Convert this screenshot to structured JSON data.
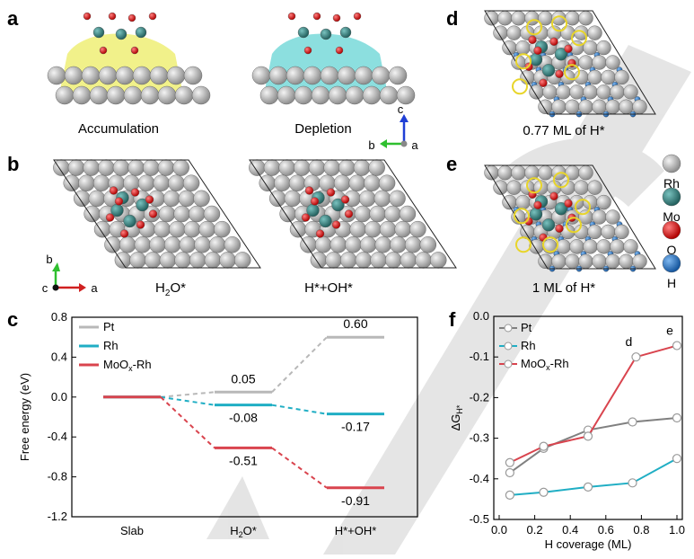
{
  "panel_labels": {
    "a": "a",
    "b": "b",
    "c": "c",
    "d": "d",
    "e": "e",
    "f": "f"
  },
  "panel_a": {
    "left_caption": "Accumulation",
    "right_caption": "Depletion",
    "axes": {
      "c": "c",
      "b": "b",
      "a": "a"
    }
  },
  "panel_b": {
    "left_caption_base": "H",
    "left_caption_sub": "2",
    "left_caption_tail": "O*",
    "right_caption": "H*+OH*",
    "axes": {
      "b": "b",
      "c": "c",
      "a": "a"
    }
  },
  "panel_d": {
    "caption": "0.77 ML of H*"
  },
  "panel_e": {
    "caption": "1 ML of H*"
  },
  "atom_legend": [
    {
      "label": "Rh",
      "color": "#c6c6c6"
    },
    {
      "label": "Mo",
      "color": "#3c8f8c"
    },
    {
      "label": "O",
      "color": "#e02020"
    },
    {
      "label": "H",
      "color": "#2f7fd6"
    }
  ],
  "colors": {
    "pt": "#b8b8b8",
    "rh": "#20aec4",
    "moox": "#d9444e",
    "accum": "#e6e62a",
    "deplete": "#2ec4c4"
  },
  "chart_data": [
    {
      "type": "line",
      "panel": "c",
      "ylabel": "Free energy (eV)",
      "categories": [
        "Slab",
        "H2O*",
        "H*+OH*"
      ],
      "category_labels": [
        {
          "base": "Slab",
          "sub": "",
          "tail": ""
        },
        {
          "base": "H",
          "sub": "2",
          "tail": "O*"
        },
        {
          "base": "H*+OH*",
          "sub": "",
          "tail": ""
        }
      ],
      "ylim": [
        -1.2,
        0.8
      ],
      "yticks": [
        "0.8",
        "0.4",
        "0.0",
        "-0.4",
        "-0.8",
        "-1.2"
      ],
      "legend_position": "top-left",
      "series": [
        {
          "name": "Pt",
          "values": [
            0.0,
            0.05,
            0.6
          ],
          "labels": [
            "",
            "0.05",
            "0.60"
          ],
          "color": "#b8b8b8"
        },
        {
          "name": "Rh",
          "values": [
            0.0,
            -0.08,
            -0.17
          ],
          "labels": [
            "",
            "-0.08",
            "-0.17"
          ],
          "color": "#20aec4"
        },
        {
          "name_base": "MoO",
          "name_sub": "x",
          "name_tail": "-Rh",
          "values": [
            0.0,
            -0.51,
            -0.91
          ],
          "labels": [
            "",
            "-0.51",
            "-0.91"
          ],
          "color": "#d9444e"
        }
      ]
    },
    {
      "type": "line",
      "panel": "f",
      "xlabel": "H coverage (ML)",
      "ylabel": {
        "base": "ΔG",
        "sub": "H*"
      },
      "xlim": [
        0.0,
        1.0
      ],
      "ylim": [
        -0.5,
        0.0
      ],
      "xticks": [
        "0.0",
        "0.2",
        "0.4",
        "0.6",
        "0.8",
        "1.0"
      ],
      "yticks": [
        "0.0",
        "-0.1",
        "-0.2",
        "-0.3",
        "-0.4",
        "-0.5"
      ],
      "legend_position": "top-left",
      "annotations": [
        {
          "text": "d",
          "x": 0.77,
          "y": -0.1
        },
        {
          "text": "e",
          "x": 1.0,
          "y": -0.072
        }
      ],
      "series": [
        {
          "name": "Pt",
          "x": [
            0.06,
            0.25,
            0.5,
            0.75,
            1.0
          ],
          "y": [
            -0.385,
            -0.325,
            -0.28,
            -0.26,
            -0.25
          ],
          "color": "#808080"
        },
        {
          "name": "Rh",
          "x": [
            0.06,
            0.25,
            0.5,
            0.75,
            1.0
          ],
          "y": [
            -0.44,
            -0.433,
            -0.42,
            -0.41,
            -0.35
          ],
          "color": "#20aec4"
        },
        {
          "name_base": "MoO",
          "name_sub": "x",
          "name_tail": "-Rh",
          "x": [
            0.06,
            0.25,
            0.5,
            0.77,
            1.0
          ],
          "y": [
            -0.36,
            -0.32,
            -0.295,
            -0.1,
            -0.072
          ],
          "color": "#d9444e"
        }
      ]
    }
  ]
}
